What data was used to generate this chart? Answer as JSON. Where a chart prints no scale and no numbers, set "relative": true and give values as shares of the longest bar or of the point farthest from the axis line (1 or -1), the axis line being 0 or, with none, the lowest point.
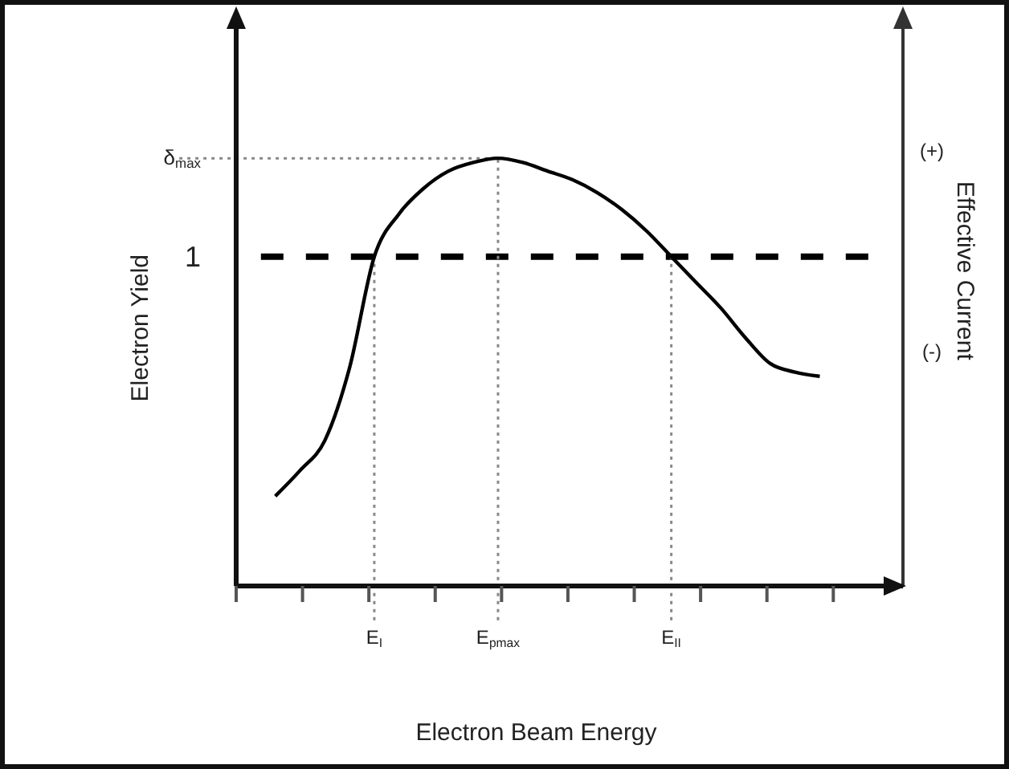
{
  "chart_data": {
    "type": "line",
    "relative": true,
    "xlabel": "Electron Beam Energy",
    "ylabel": "Electron Yield",
    "y2label": "Effective Current",
    "categories": [
      null,
      null,
      null,
      null,
      "E$_{I}$",
      null,
      null,
      null,
      null,
      "E$_{pmax}$",
      null,
      null,
      null,
      null,
      null,
      null,
      "E$_{II}$",
      null,
      null,
      null,
      null,
      null,
      null
    ],
    "series": [
      {
        "color": "#000000",
        "values": [
          0.21,
          0.27,
          0.34,
          0.51,
          0.77,
          0.87,
          0.93,
          0.97,
          0.99,
          1,
          0.99,
          0.97,
          0.95,
          0.92,
          0.88,
          0.83,
          0.77,
          0.71,
          0.65,
          0.58,
          0.52,
          0.5,
          0.49
        ]
      }
    ],
    "ref_lines": [
      {
        "axis": "y",
        "value": 0.77,
        "label": "1",
        "line_style": "dashed",
        "color": "#000000"
      },
      {
        "axis": "y",
        "value": 1,
        "label": "δ$_{max}$",
        "line_style": "dotted",
        "color": "#888888"
      },
      {
        "axis": "x",
        "value": "E$_{I}$",
        "line_style": "dotted",
        "color": "#888888"
      },
      {
        "axis": "x",
        "value": "E$_{pmax}$",
        "line_style": "dotted",
        "color": "#888888"
      },
      {
        "axis": "x",
        "value": "E$_{II}$",
        "line_style": "dotted",
        "color": "#888888"
      }
    ],
    "annotations": [
      "(+)",
      "(-)"
    ],
    "marker": "none"
  }
}
